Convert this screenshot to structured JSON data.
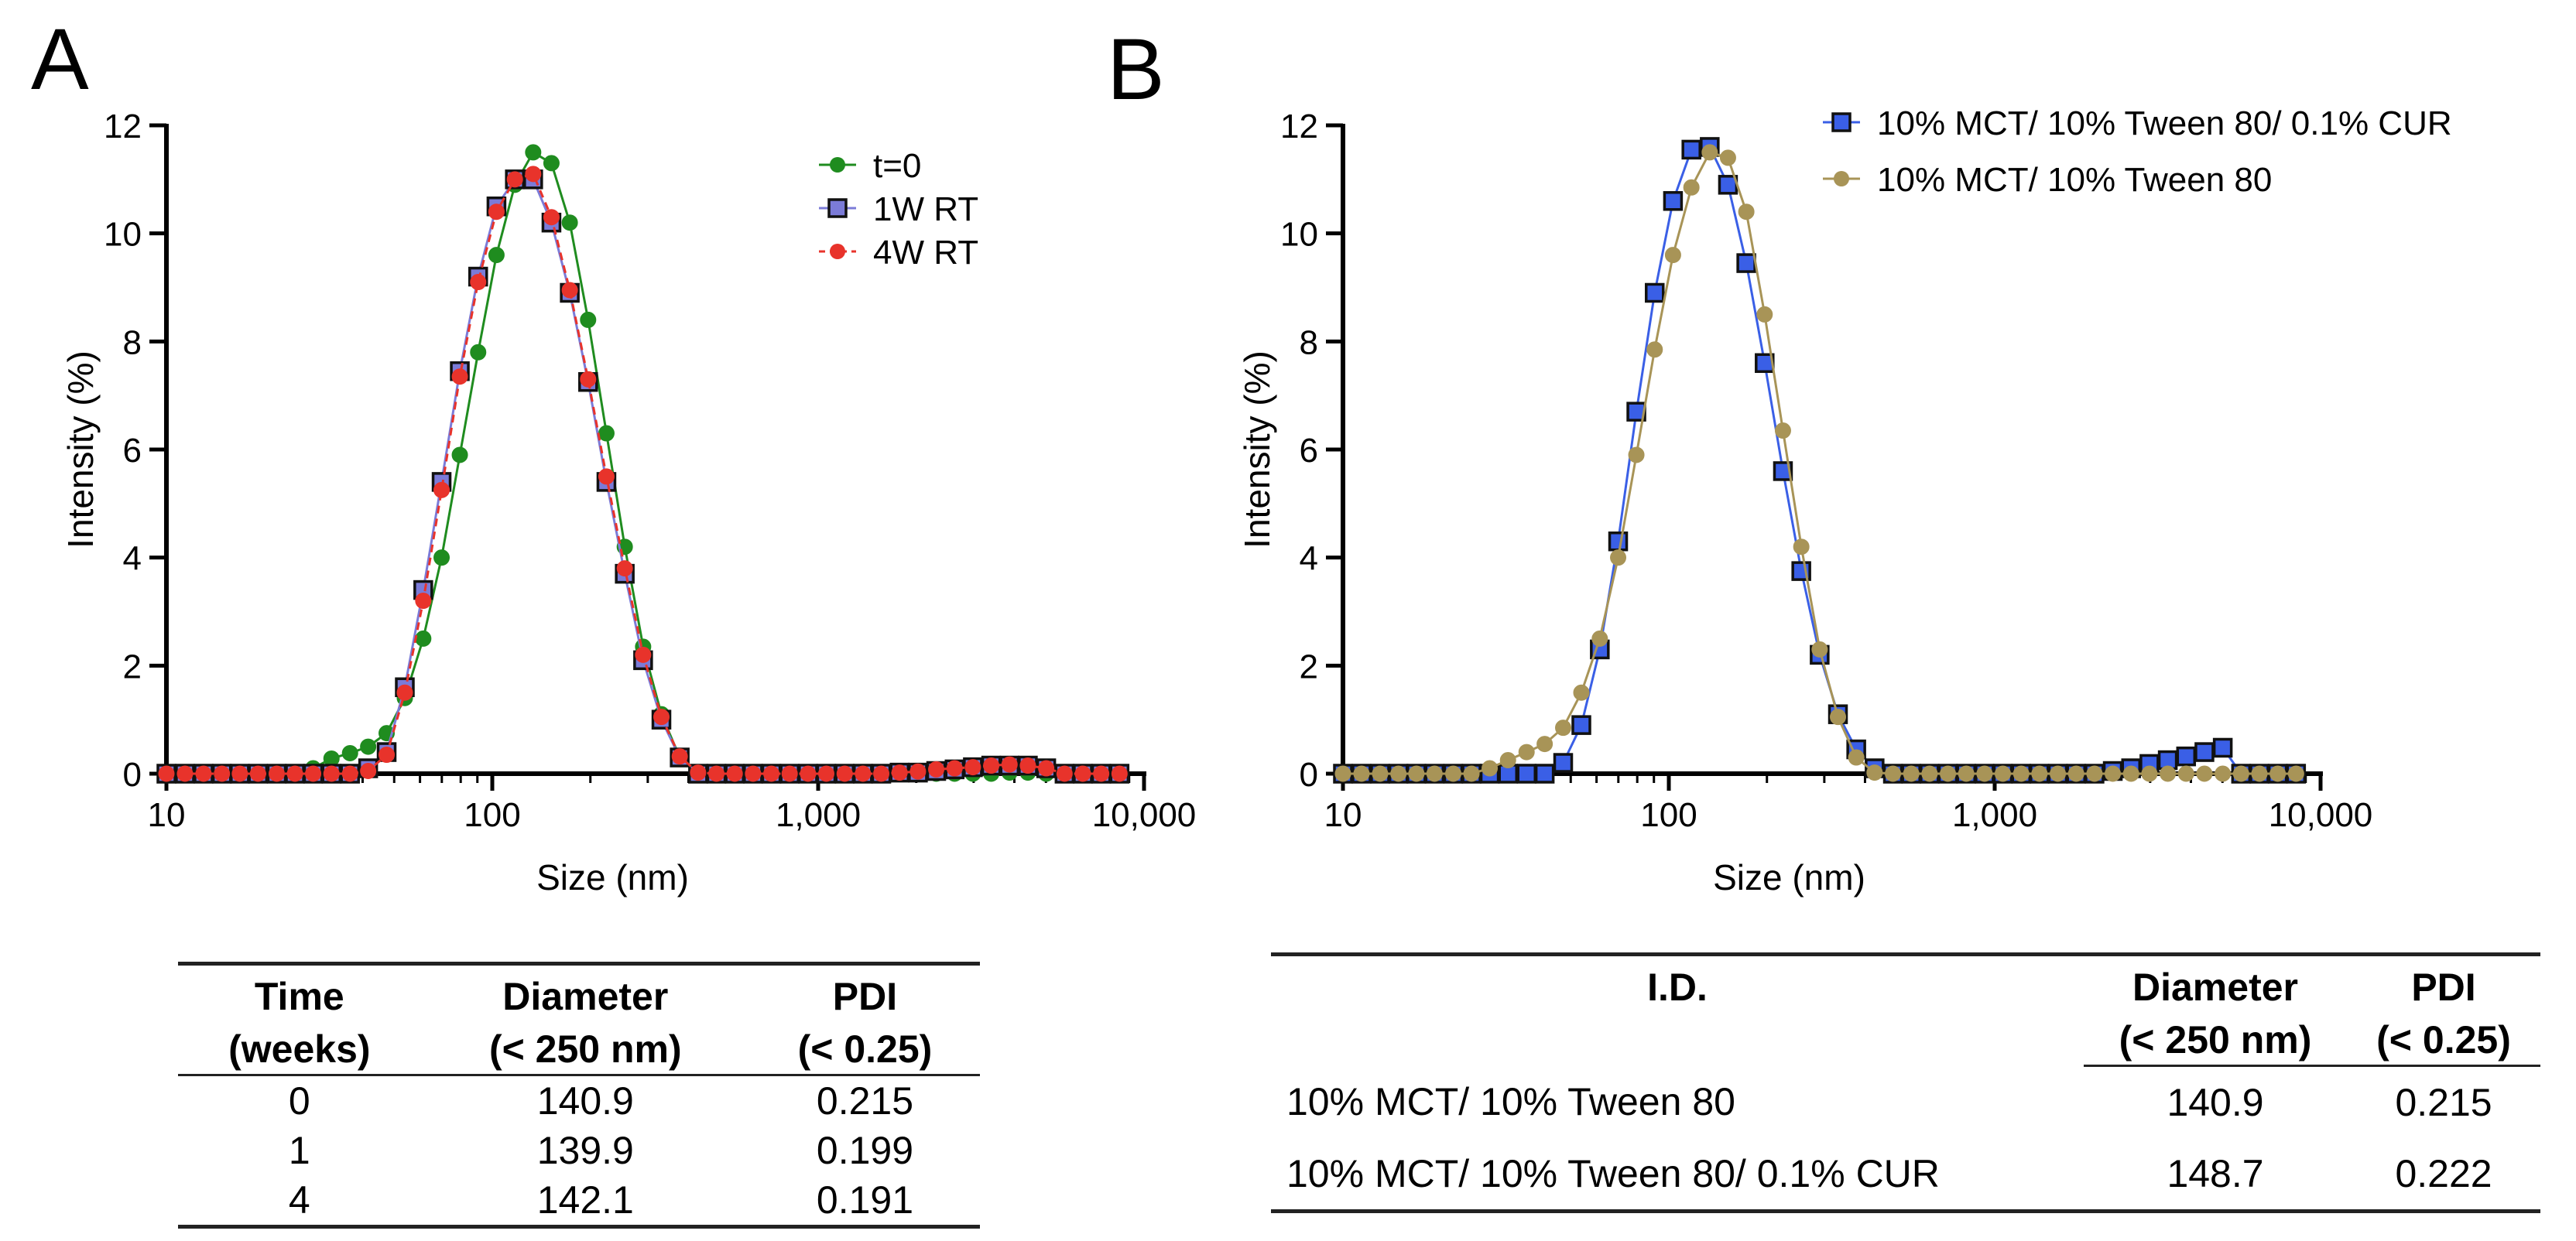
{
  "panels": [
    {
      "label": "A",
      "table": {
        "headers": [
          [
            "Time",
            "(weeks)"
          ],
          [
            "Diameter",
            "(< 250 nm)"
          ],
          [
            "PDI",
            "(< 0.25)"
          ]
        ],
        "rows": [
          [
            "0",
            "140.9",
            "0.215"
          ],
          [
            "1",
            "139.9",
            "0.199"
          ],
          [
            "4",
            "142.1",
            "0.191"
          ]
        ]
      }
    },
    {
      "label": "B",
      "table": {
        "headers": [
          [
            "I.D."
          ],
          [
            "Diameter",
            "(< 250 nm)"
          ],
          [
            "PDI",
            "(< 0.25)"
          ]
        ],
        "rows": [
          [
            "10% MCT/ 10% Tween 80",
            "140.9",
            "0.215"
          ],
          [
            "10% MCT/ 10% Tween 80/ 0.1% CUR",
            "148.7",
            "0.222"
          ]
        ]
      }
    }
  ],
  "chart_data": [
    {
      "type": "line",
      "panel": "A",
      "xlabel": "Size (nm)",
      "ylabel": "Intensity (%)",
      "xscale": "log",
      "xlim": [
        10,
        10000
      ],
      "ylim": [
        0,
        12
      ],
      "xticks": [
        10,
        100,
        1000,
        10000
      ],
      "xtick_labels": [
        "10",
        "100",
        "1,000",
        "10,000"
      ],
      "yticks": [
        0,
        2,
        4,
        6,
        8,
        10,
        12
      ],
      "legend_position": "top-right",
      "series": [
        {
          "name": "t=0",
          "color": "#1f8c1f",
          "marker": "circle",
          "line": "solid",
          "x": [
            10,
            11.4,
            13,
            14.8,
            16.8,
            19.1,
            21.8,
            24.8,
            28.2,
            32.1,
            36.6,
            41.6,
            47.4,
            53.9,
            61.4,
            69.9,
            79.5,
            90.5,
            103,
            117.3,
            133.5,
            151.9,
            172.9,
            196.8,
            224,
            255,
            290.3,
            330.4,
            376,
            428,
            487.2,
            554.5,
            631.2,
            718.4,
            817.7,
            930.8,
            1059,
            1206,
            1372,
            1562,
            1778,
            2024,
            2303,
            2622,
            2984,
            3397,
            3867,
            4401,
            5010,
            5703,
            6491,
            7388,
            8410
          ],
          "y": [
            0,
            0,
            0,
            0,
            0,
            0,
            0,
            0,
            0.1,
            0.28,
            0.38,
            0.5,
            0.75,
            1.4,
            2.5,
            4.0,
            5.9,
            7.8,
            9.6,
            10.9,
            11.5,
            11.3,
            10.2,
            8.4,
            6.3,
            4.2,
            2.35,
            1.1,
            0.3,
            0,
            0,
            0,
            0,
            0,
            0,
            0,
            0,
            0,
            0,
            0,
            0,
            0,
            0,
            0,
            0,
            0,
            0.02,
            0.02,
            0,
            0,
            0,
            0,
            0
          ]
        },
        {
          "name": "1W RT",
          "color": "#7b7bd8",
          "marker": "square",
          "line": "solid",
          "x": [
            10,
            11.4,
            13,
            14.8,
            16.8,
            19.1,
            21.8,
            24.8,
            28.2,
            32.1,
            36.6,
            41.6,
            47.4,
            53.9,
            61.4,
            69.9,
            79.5,
            90.5,
            103,
            117.3,
            133.5,
            151.9,
            172.9,
            196.8,
            224,
            255,
            290.3,
            330.4,
            376,
            428,
            487.2,
            554.5,
            631.2,
            718.4,
            817.7,
            930.8,
            1059,
            1206,
            1372,
            1562,
            1778,
            2024,
            2303,
            2622,
            2984,
            3397,
            3867,
            4401,
            5010,
            5703,
            6491,
            7388,
            8410
          ],
          "y": [
            0,
            0,
            0,
            0,
            0,
            0,
            0,
            0,
            0,
            0,
            0,
            0.1,
            0.4,
            1.6,
            3.4,
            5.4,
            7.45,
            9.2,
            10.5,
            11.0,
            11.0,
            10.2,
            8.9,
            7.25,
            5.4,
            3.7,
            2.1,
            1.0,
            0.3,
            0,
            0,
            0,
            0,
            0,
            0,
            0,
            0,
            0,
            0,
            0,
            0.02,
            0.02,
            0.05,
            0.08,
            0.12,
            0.15,
            0.15,
            0.15,
            0.1,
            0,
            0,
            0,
            0
          ]
        },
        {
          "name": "4W RT",
          "color": "#e8332b",
          "marker": "circle",
          "line": "dashed",
          "x": [
            10,
            11.4,
            13,
            14.8,
            16.8,
            19.1,
            21.8,
            24.8,
            28.2,
            32.1,
            36.6,
            41.6,
            47.4,
            53.9,
            61.4,
            69.9,
            79.5,
            90.5,
            103,
            117.3,
            133.5,
            151.9,
            172.9,
            196.8,
            224,
            255,
            290.3,
            330.4,
            376,
            428,
            487.2,
            554.5,
            631.2,
            718.4,
            817.7,
            930.8,
            1059,
            1206,
            1372,
            1562,
            1778,
            2024,
            2303,
            2622,
            2984,
            3397,
            3867,
            4401,
            5010,
            5703,
            6491,
            7388,
            8410
          ],
          "y": [
            0,
            0,
            0,
            0,
            0,
            0,
            0,
            0,
            0,
            0,
            0,
            0.05,
            0.35,
            1.5,
            3.2,
            5.25,
            7.35,
            9.1,
            10.4,
            11.0,
            11.1,
            10.3,
            8.95,
            7.3,
            5.5,
            3.8,
            2.2,
            1.05,
            0.32,
            0.02,
            0,
            0,
            0,
            0,
            0,
            0,
            0,
            0,
            0,
            0,
            0.02,
            0.04,
            0.08,
            0.1,
            0.12,
            0.15,
            0.17,
            0.15,
            0.1,
            0,
            0,
            0,
            0
          ]
        }
      ]
    },
    {
      "type": "line",
      "panel": "B",
      "xlabel": "Size (nm)",
      "ylabel": "Intensity (%)",
      "xscale": "log",
      "xlim": [
        10,
        10000
      ],
      "ylim": [
        0,
        12
      ],
      "xticks": [
        10,
        100,
        1000,
        10000
      ],
      "xtick_labels": [
        "10",
        "100",
        "1,000",
        "10,000"
      ],
      "yticks": [
        0,
        2,
        4,
        6,
        8,
        10,
        12
      ],
      "legend_position": "top-right",
      "series": [
        {
          "name": "10% MCT/ 10% Tween 80/ 0.1% CUR",
          "color": "#3a5fe6",
          "marker": "square",
          "line": "solid",
          "x": [
            10,
            11.4,
            13,
            14.8,
            16.8,
            19.1,
            21.8,
            24.8,
            28.2,
            32.1,
            36.6,
            41.6,
            47.4,
            53.9,
            61.4,
            69.9,
            79.5,
            90.5,
            103,
            117.3,
            133.5,
            151.9,
            172.9,
            196.8,
            224,
            255,
            290.3,
            330.4,
            376,
            428,
            487.2,
            554.5,
            631.2,
            718.4,
            817.7,
            930.8,
            1059,
            1206,
            1372,
            1562,
            1778,
            2024,
            2303,
            2622,
            2984,
            3397,
            3867,
            4401,
            5010,
            5703,
            6491,
            7388,
            8410
          ],
          "y": [
            0,
            0,
            0,
            0,
            0,
            0,
            0,
            0,
            0,
            0,
            0,
            0,
            0.2,
            0.9,
            2.3,
            4.3,
            6.7,
            8.9,
            10.6,
            11.55,
            11.6,
            10.9,
            9.45,
            7.6,
            5.6,
            3.75,
            2.2,
            1.1,
            0.45,
            0.1,
            0,
            0,
            0,
            0,
            0,
            0,
            0,
            0,
            0,
            0,
            0,
            0,
            0.05,
            0.1,
            0.18,
            0.25,
            0.32,
            0.4,
            0.48,
            0,
            0,
            0,
            0
          ]
        },
        {
          "name": "10% MCT/ 10% Tween 80",
          "color": "#a89457",
          "marker": "circle",
          "line": "solid",
          "x": [
            10,
            11.4,
            13,
            14.8,
            16.8,
            19.1,
            21.8,
            24.8,
            28.2,
            32.1,
            36.6,
            41.6,
            47.4,
            53.9,
            61.4,
            69.9,
            79.5,
            90.5,
            103,
            117.3,
            133.5,
            151.9,
            172.9,
            196.8,
            224,
            255,
            290.3,
            330.4,
            376,
            428,
            487.2,
            554.5,
            631.2,
            718.4,
            817.7,
            930.8,
            1059,
            1206,
            1372,
            1562,
            1778,
            2024,
            2303,
            2622,
            2984,
            3397,
            3867,
            4401,
            5010,
            5703,
            6491,
            7388,
            8410
          ],
          "y": [
            0,
            0,
            0,
            0,
            0,
            0,
            0,
            0,
            0.1,
            0.25,
            0.4,
            0.55,
            0.85,
            1.5,
            2.5,
            4.0,
            5.9,
            7.85,
            9.6,
            10.85,
            11.5,
            11.4,
            10.4,
            8.5,
            6.35,
            4.2,
            2.3,
            1.05,
            0.3,
            0.02,
            0,
            0,
            0,
            0,
            0,
            0,
            0,
            0,
            0,
            0,
            0,
            0,
            0,
            0,
            0,
            0,
            0,
            0,
            0,
            0,
            0,
            0,
            0
          ]
        }
      ]
    }
  ]
}
